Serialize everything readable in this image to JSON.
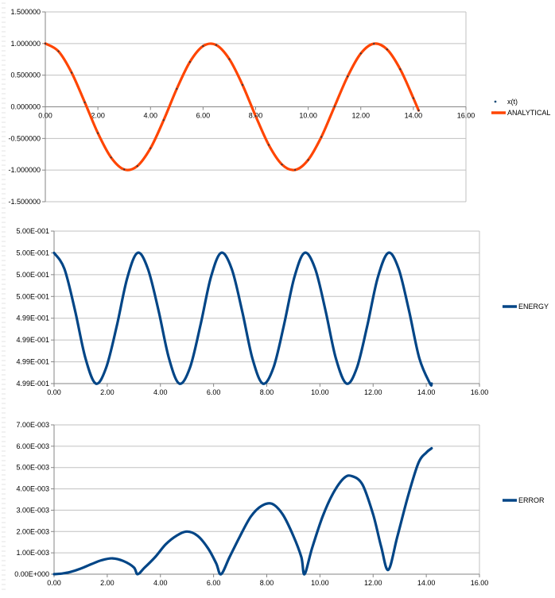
{
  "colors": {
    "grid": "#c0c0c0",
    "axis": "#868686",
    "frame": "#b3b3b3",
    "series_xt_marker": "#1f4e79",
    "series_analytical": "#ff4500",
    "series_energy": "#004586",
    "series_error": "#004586"
  },
  "chart_data": [
    {
      "type": "scatter",
      "xlim": [
        0,
        16
      ],
      "ylim": [
        -1.5,
        1.5
      ],
      "xticks": [
        "0.00",
        "2.00",
        "4.00",
        "6.00",
        "8.00",
        "10.00",
        "12.00",
        "14.00",
        "16.00"
      ],
      "yticks": [
        "1.500000",
        "1.000000",
        "0.500000",
        "0.000000",
        "-0.500000",
        "-1.000000",
        "-1.500000"
      ],
      "grid": true,
      "legend_position": "right",
      "series": [
        {
          "name": "x(t)",
          "style": "markers",
          "x": [
            0.0,
            0.5,
            1.0,
            1.5,
            2.0,
            2.5,
            3.0,
            3.5,
            4.0,
            4.5,
            5.0,
            5.5,
            6.0,
            6.5,
            7.0,
            7.5,
            8.0,
            8.5,
            9.0,
            9.5,
            10.0,
            10.5,
            11.0,
            11.5,
            12.0,
            12.5,
            13.0,
            13.5,
            14.0,
            14.2
          ],
          "y": [
            1.0,
            0.878,
            0.54,
            0.071,
            -0.416,
            -0.801,
            -0.99,
            -0.936,
            -0.654,
            -0.211,
            0.284,
            0.709,
            0.96,
            0.977,
            0.754,
            0.347,
            -0.146,
            -0.602,
            -0.911,
            -0.997,
            -0.839,
            -0.476,
            0.004,
            0.48,
            0.844,
            0.998,
            0.907,
            0.595,
            0.137,
            -0.058
          ]
        },
        {
          "name": "ANALYTICAL",
          "style": "line",
          "x": [
            0.0,
            0.5,
            1.0,
            1.5,
            2.0,
            2.5,
            3.0,
            3.5,
            4.0,
            4.5,
            5.0,
            5.5,
            6.0,
            6.5,
            7.0,
            7.5,
            8.0,
            8.5,
            9.0,
            9.5,
            10.0,
            10.5,
            11.0,
            11.5,
            12.0,
            12.5,
            13.0,
            13.5,
            14.0,
            14.2
          ],
          "y": [
            1.0,
            0.878,
            0.54,
            0.071,
            -0.416,
            -0.801,
            -0.99,
            -0.936,
            -0.654,
            -0.211,
            0.284,
            0.709,
            0.96,
            0.977,
            0.754,
            0.347,
            -0.146,
            -0.602,
            -0.911,
            -0.997,
            -0.839,
            -0.476,
            0.004,
            0.48,
            0.844,
            0.998,
            0.907,
            0.595,
            0.137,
            -0.058
          ]
        }
      ]
    },
    {
      "type": "line",
      "xlim": [
        0,
        16
      ],
      "ylim": [
        0,
        7
      ],
      "xticks": [
        "0.00",
        "2.00",
        "4.00",
        "6.00",
        "8.00",
        "10.00",
        "12.00",
        "14.00",
        "16.00"
      ],
      "yticks": [
        "5.00E-001",
        "5.00E-001",
        "5.00E-001",
        "5.00E-001",
        "4.99E-001",
        "4.99E-001",
        "4.99E-001",
        "4.99E-001"
      ],
      "grid": true,
      "legend_position": "right",
      "series": [
        {
          "name": "ENERGY",
          "x": [
            0.0,
            0.39,
            0.79,
            1.18,
            1.57,
            1.96,
            2.36,
            2.75,
            3.14,
            3.53,
            3.93,
            4.32,
            4.71,
            5.11,
            5.5,
            5.89,
            6.28,
            6.68,
            7.07,
            7.46,
            7.85,
            8.25,
            8.64,
            9.03,
            9.42,
            9.82,
            10.21,
            10.6,
            11.0,
            11.39,
            11.78,
            12.17,
            12.57,
            12.96,
            13.35,
            13.74,
            14.14,
            14.2
          ],
          "y": [
            6.0,
            5.27,
            3.35,
            1.16,
            0.0,
            0.73,
            2.65,
            4.84,
            6.0,
            5.27,
            3.35,
            1.16,
            0.0,
            0.73,
            2.65,
            4.84,
            6.0,
            5.27,
            3.35,
            1.16,
            0.0,
            0.73,
            2.65,
            4.84,
            6.0,
            5.27,
            3.35,
            1.16,
            0.0,
            0.73,
            2.65,
            4.84,
            6.0,
            5.27,
            3.35,
            1.16,
            0.0,
            0.0
          ]
        }
      ]
    },
    {
      "type": "line",
      "xlim": [
        0,
        16
      ],
      "ylim": [
        0,
        0.007
      ],
      "xticks": [
        "0.00",
        "2.00",
        "4.00",
        "6.00",
        "8.00",
        "10.00",
        "12.00",
        "14.00",
        "16.00"
      ],
      "yticks": [
        "7.00E-003",
        "6.00E-003",
        "5.00E-003",
        "4.00E-003",
        "3.00E-003",
        "2.00E-003",
        "1.00E-003",
        "0.00E+000"
      ],
      "grid": true,
      "legend_position": "right",
      "series": [
        {
          "name": "ERROR",
          "x": [
            0.0,
            0.3,
            0.6,
            1.0,
            1.4,
            1.8,
            2.2,
            2.6,
            3.0,
            3.14,
            3.4,
            3.8,
            4.2,
            4.6,
            5.0,
            5.4,
            5.8,
            6.1,
            6.28,
            6.6,
            7.0,
            7.4,
            7.8,
            8.2,
            8.6,
            9.0,
            9.3,
            9.42,
            9.7,
            10.1,
            10.5,
            10.9,
            11.2,
            11.6,
            12.0,
            12.3,
            12.57,
            12.9,
            13.3,
            13.7,
            14.0,
            14.2
          ],
          "y": [
            0.0,
            3e-05,
            0.0001,
            0.00026,
            0.00047,
            0.00066,
            0.00074,
            0.00062,
            0.00032,
            0.0,
            0.0003,
            0.0008,
            0.0014,
            0.0018,
            0.002,
            0.0018,
            0.0012,
            0.0005,
            0.0,
            0.0008,
            0.0018,
            0.0027,
            0.0032,
            0.0033,
            0.0028,
            0.0018,
            0.0008,
            0.0,
            0.0012,
            0.0027,
            0.0038,
            0.0045,
            0.0046,
            0.0042,
            0.0028,
            0.0013,
            0.0002,
            0.0017,
            0.0036,
            0.0052,
            0.0057,
            0.0059
          ]
        }
      ]
    }
  ]
}
